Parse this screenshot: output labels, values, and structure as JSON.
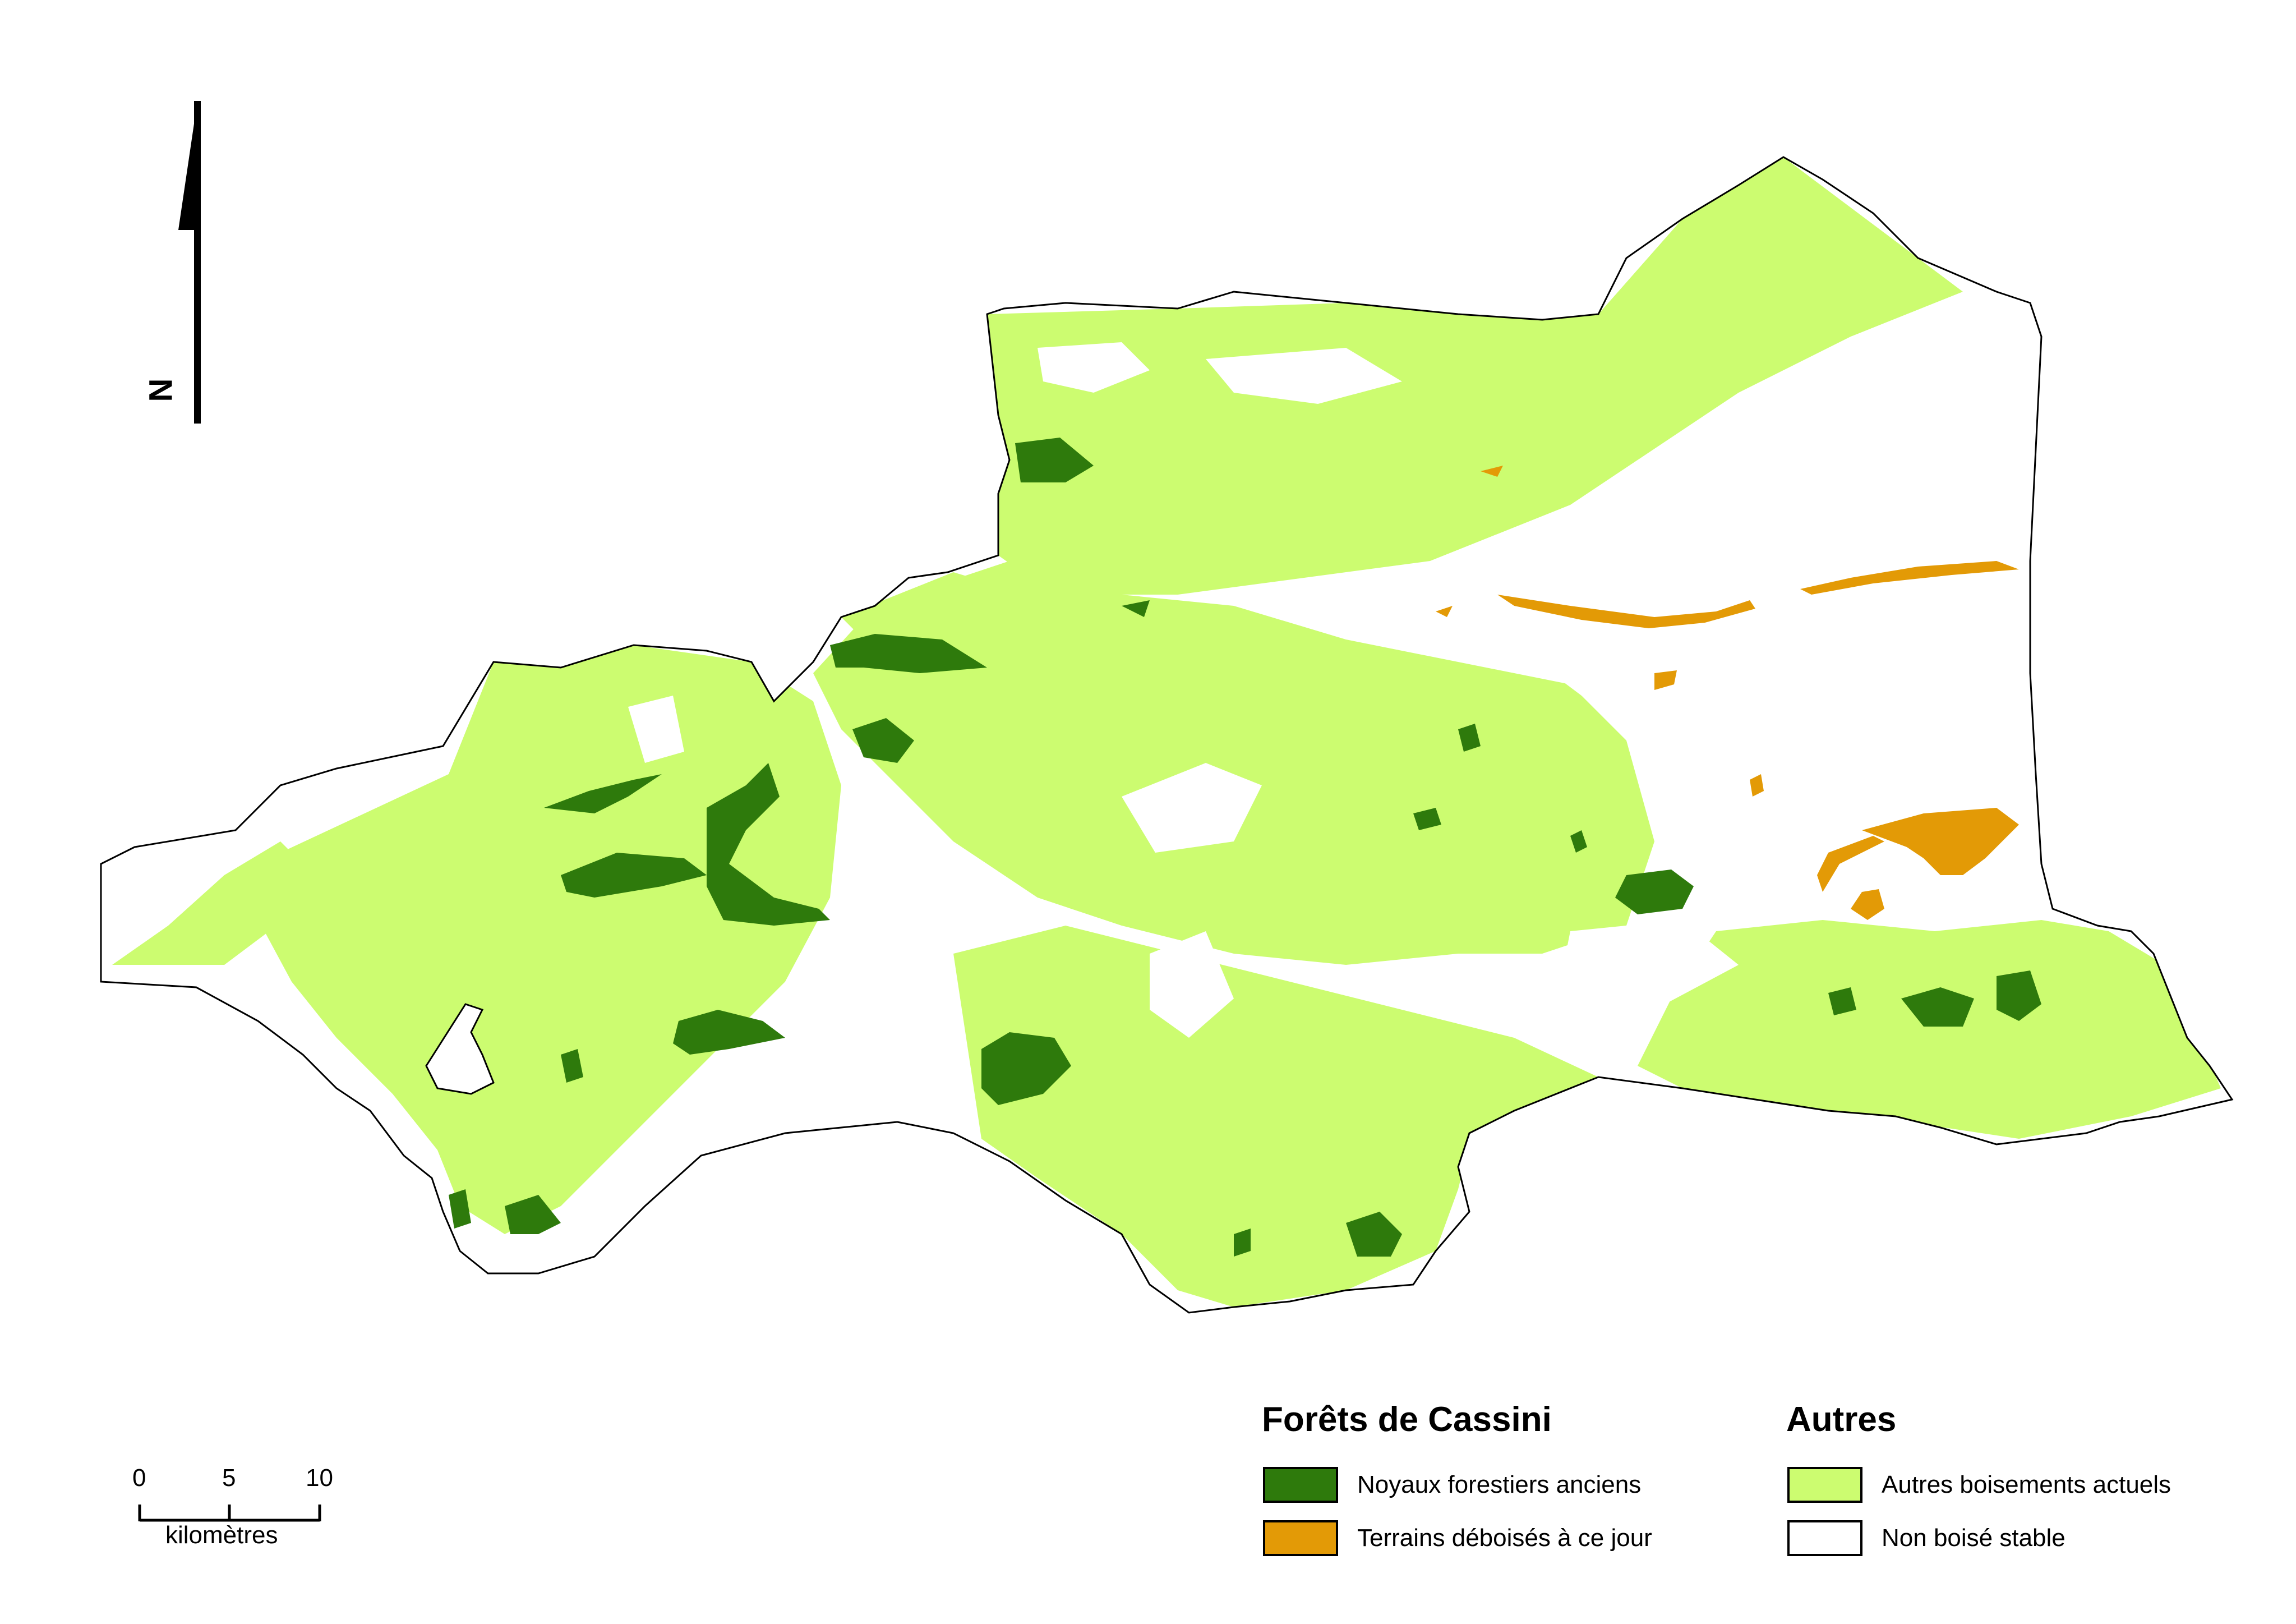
{
  "legend": {
    "cassini": {
      "title": "Forêts de Cassini",
      "items": [
        {
          "label": "Noyaux forestiers anciens",
          "color": "#2e7a0c"
        },
        {
          "label": "Terrains déboisés à ce jour",
          "color": "#e39a06"
        }
      ]
    },
    "autres": {
      "title": "Autres",
      "items": [
        {
          "label": "Autres boisements actuels",
          "color": "#ccfc70"
        },
        {
          "label": "Non boisé stable",
          "color": "#ffffff"
        }
      ]
    }
  },
  "scale_bar": {
    "ticks": [
      "0",
      "5",
      "10"
    ],
    "unit": "kilomètres"
  },
  "north_arrow": {
    "letter": "N",
    "icon": "north-arrow-icon"
  },
  "colors": {
    "outline": "#000000",
    "forest_core": "#2e7a0c",
    "deforested": "#e39a06",
    "other_woodland": "#ccfc70",
    "non_wooded": "#ffffff"
  }
}
